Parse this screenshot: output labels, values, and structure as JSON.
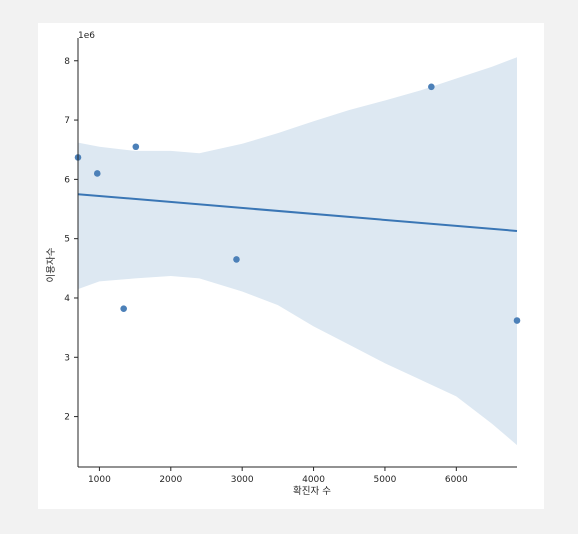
{
  "chart_data": {
    "type": "scatter",
    "title": "",
    "xlabel": "확진자 수",
    "ylabel": "이용자수",
    "y_offset_label": "1e6",
    "xlim": [
      700,
      6850
    ],
    "ylim": [
      1150000,
      8350000
    ],
    "x_ticks": [
      1000,
      2000,
      3000,
      4000,
      5000,
      6000
    ],
    "y_ticks": [
      2000000,
      3000000,
      4000000,
      5000000,
      6000000,
      7000000,
      8000000
    ],
    "y_tick_labels": [
      "2",
      "3",
      "4",
      "5",
      "6",
      "7",
      "8"
    ],
    "grid": false,
    "points": [
      {
        "x": 700,
        "y": 6370000
      },
      {
        "x": 970,
        "y": 6100000
      },
      {
        "x": 1340,
        "y": 3820000
      },
      {
        "x": 1510,
        "y": 6550000
      },
      {
        "x": 2920,
        "y": 4650000
      },
      {
        "x": 5650,
        "y": 7560000
      },
      {
        "x": 6850,
        "y": 3620000
      }
    ],
    "regression": {
      "x": [
        700,
        6850
      ],
      "y": [
        5750000,
        5130000
      ]
    },
    "confidence_band": {
      "x": [
        700,
        1000,
        1500,
        2000,
        2400,
        3000,
        3500,
        4000,
        4500,
        5000,
        5500,
        6000,
        6500,
        6850
      ],
      "upper": [
        6620000,
        6550000,
        6480000,
        6480000,
        6440000,
        6600000,
        6780000,
        6980000,
        7170000,
        7330000,
        7500000,
        7700000,
        7900000,
        8060000
      ],
      "lower": [
        4150000,
        4280000,
        4330000,
        4370000,
        4330000,
        4110000,
        3880000,
        3520000,
        3210000,
        2900000,
        2620000,
        2340000,
        1880000,
        1520000
      ]
    },
    "colors": {
      "points": "#4c80b8",
      "line": "#3a76b5",
      "band": "#dde8f2"
    }
  }
}
